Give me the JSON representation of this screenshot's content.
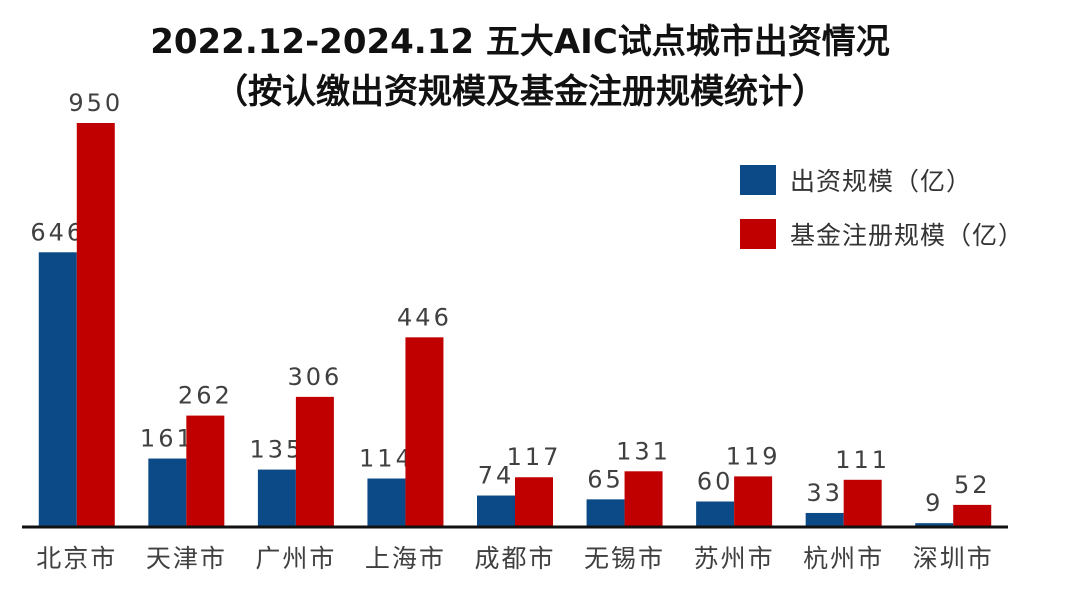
{
  "title_line1": "2022.12-2024.12  五大AIC试点城市出资情况",
  "title_line2": "（按认缴出资规模及基金注册规模统计）",
  "colors": {
    "series1": "#0b4a87",
    "series2": "#c00000",
    "axis": "#111111",
    "label": "#404040"
  },
  "chart_data": {
    "type": "bar",
    "title": "2022.12-2024.12  五大AIC试点城市出资情况（按认缴出资规模及基金注册规模统计）",
    "categories": [
      "北京市",
      "天津市",
      "广州市",
      "上海市",
      "成都市",
      "无锡市",
      "苏州市",
      "杭州市",
      "深圳市"
    ],
    "series": [
      {
        "name": "出资规模（亿）",
        "values": [
          646,
          161,
          135,
          114,
          74,
          65,
          60,
          33,
          9
        ]
      },
      {
        "name": "基金注册规模（亿）",
        "values": [
          950,
          262,
          306,
          446,
          117,
          131,
          119,
          111,
          52
        ]
      }
    ],
    "ylim": [
      0,
      950
    ],
    "grid": false,
    "legend_position": "right",
    "data_labels": true
  }
}
